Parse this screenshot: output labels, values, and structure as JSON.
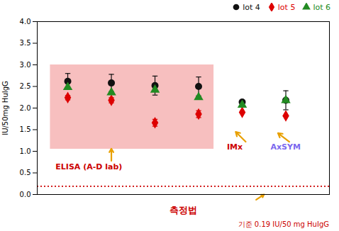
{
  "chart_data": {
    "type": "scatter",
    "ylabel": "IU/50mg HuIgG",
    "xlabel": "측정법",
    "xlim": [
      0.3,
      7.0
    ],
    "xticks": [],
    "tick_labels": "y",
    "ylim": [
      0.0,
      4.0
    ],
    "yticks": [
      {
        "value": 0.0,
        "label": "0.0"
      },
      0.5,
      {
        "value": 1.0,
        "label": "1.0"
      },
      1.5,
      {
        "value": 2.0,
        "label": "2.0"
      },
      2.5,
      {
        "value": 3.0,
        "label": "3.0"
      },
      3.5,
      {
        "value": 4.0,
        "label": "4.0"
      }
    ],
    "grid": false,
    "legend": "upper right",
    "series": [
      {
        "name": "lot 4",
        "color": "#111111",
        "marker": "circle",
        "x": [
          1,
          2,
          3,
          4,
          5,
          6
        ],
        "values": [
          2.62,
          2.58,
          2.52,
          2.5,
          2.14,
          2.18
        ],
        "errors": [
          0.18,
          0.2,
          0.22,
          0.22,
          null,
          0.22
        ]
      },
      {
        "name": "lot 5",
        "color": "#dd0000",
        "marker": "diamond",
        "x": [
          1,
          2,
          3,
          4,
          5,
          6
        ],
        "values": [
          2.24,
          2.18,
          1.66,
          1.86,
          1.9,
          1.82
        ],
        "errors": [
          0.05,
          0.06,
          0.08,
          0.08,
          null,
          null
        ]
      },
      {
        "name": "lot 6",
        "color": "#228B22",
        "marker": "triangle",
        "x": [
          1,
          2,
          3,
          4,
          5,
          6
        ],
        "values": [
          2.48,
          2.36,
          2.42,
          2.25,
          2.07,
          2.18
        ]
      }
    ],
    "reference_line": {
      "y": 0.19,
      "color": "#cc0000",
      "label": "기준 0.19 IU/50 mg HuIgG"
    },
    "highlight": {
      "x": 0.6,
      "y": 1.05,
      "width": 3.75,
      "height": 1.95,
      "color": "#f08080"
    },
    "arrow_color": "#E8A000",
    "annotations": [
      {
        "text": "ELISA (A-D lab)",
        "color": "#cc0000"
      },
      {
        "text": "IMx",
        "color": "#cc0000"
      },
      {
        "text": "AxSYM",
        "color": "#7B68EE"
      }
    ]
  }
}
